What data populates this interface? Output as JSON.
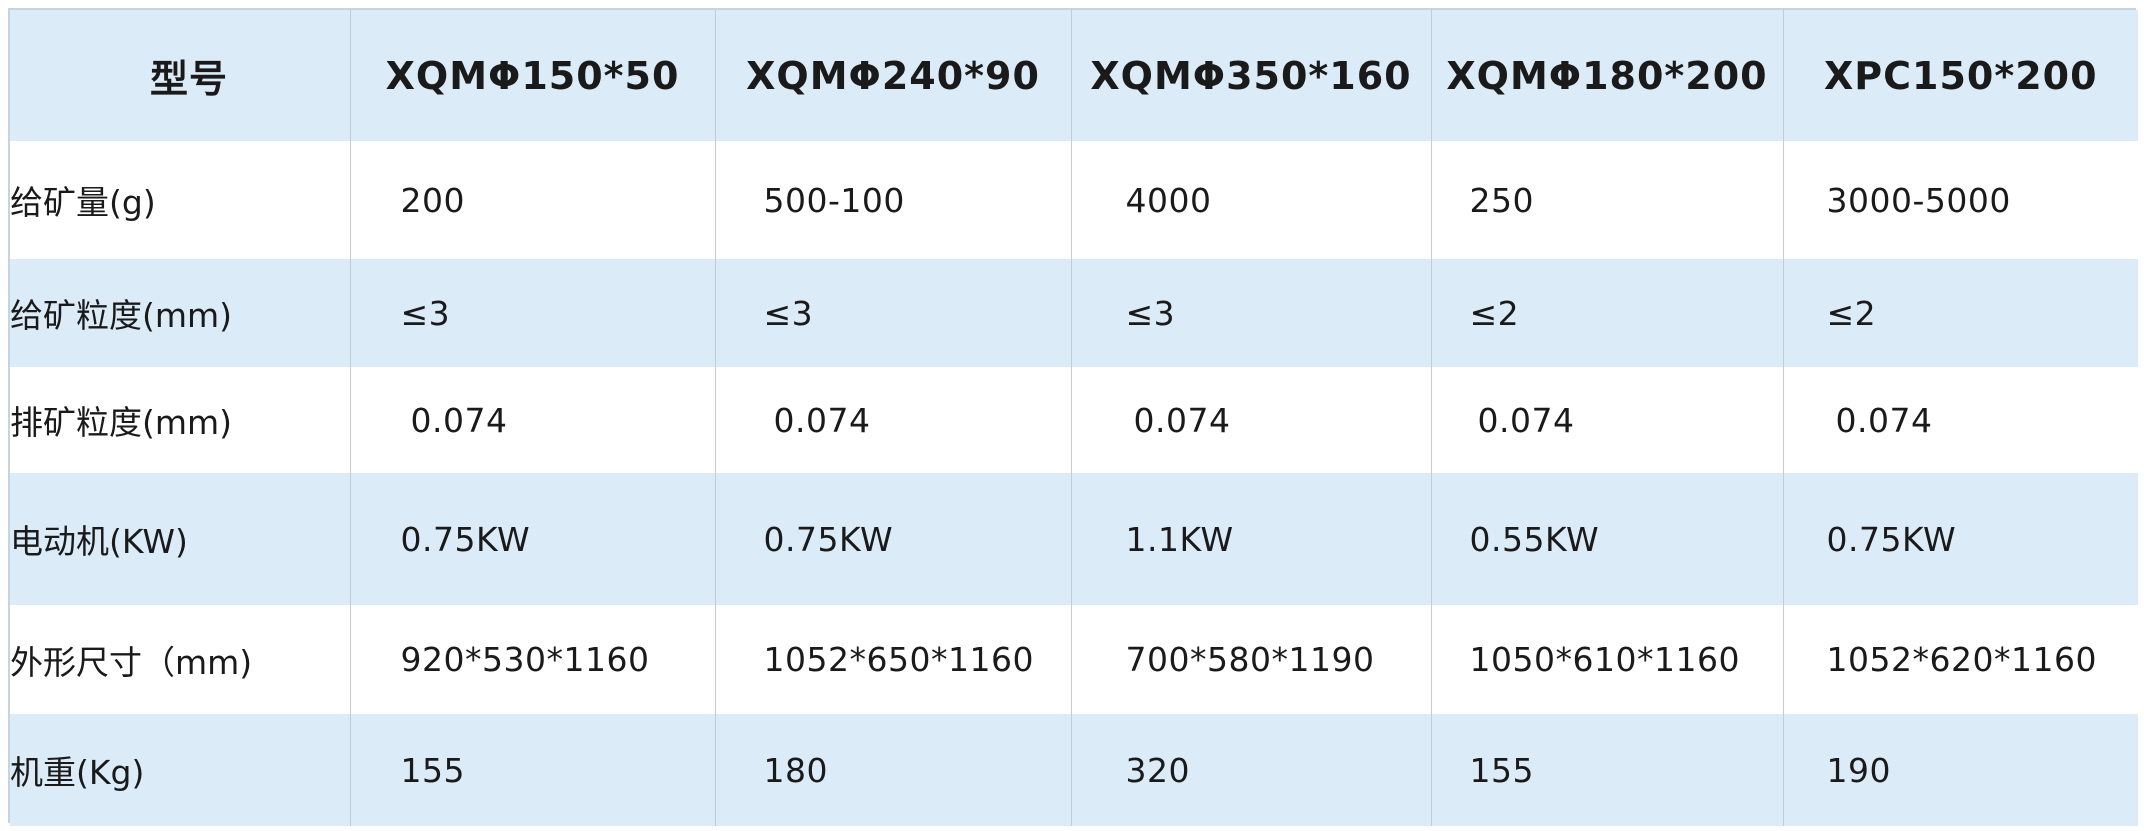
{
  "table": {
    "header": {
      "label": "型号",
      "models": [
        "XQMΦ150*50",
        "XQMΦ240*90",
        "XQMΦ350*160",
        "XQMΦ180*200",
        "XPC150*200"
      ]
    },
    "rows": [
      {
        "label": "给矿量(g)",
        "values": [
          "200",
          "500-100",
          "4000",
          "250",
          "3000-5000"
        ]
      },
      {
        "label": "给矿粒度(mm)",
        "values": [
          "≤3",
          "≤3",
          "≤3",
          "≤2",
          "≤2"
        ]
      },
      {
        "label": "排矿粒度(mm)",
        "values": [
          "0.074",
          "0.074",
          "0.074",
          "0.074",
          "0.074"
        ]
      },
      {
        "label": "电动机(KW)",
        "values": [
          "0.75KW",
          "0.75KW",
          "1.1KW",
          "0.55KW",
          "0.75KW"
        ]
      },
      {
        "label": "外形尺寸（mm)",
        "values": [
          "920*530*1160",
          "1052*650*1160",
          "700*580*1190",
          "1050*610*1160",
          "1052*620*1160"
        ]
      },
      {
        "label": "机重(Kg)",
        "values": [
          "155",
          "180",
          "320",
          "155",
          "190"
        ]
      }
    ]
  },
  "colors": {
    "stripe": "#dbebf8",
    "border": "#c3ccd6",
    "text": "#1a1a1a"
  }
}
